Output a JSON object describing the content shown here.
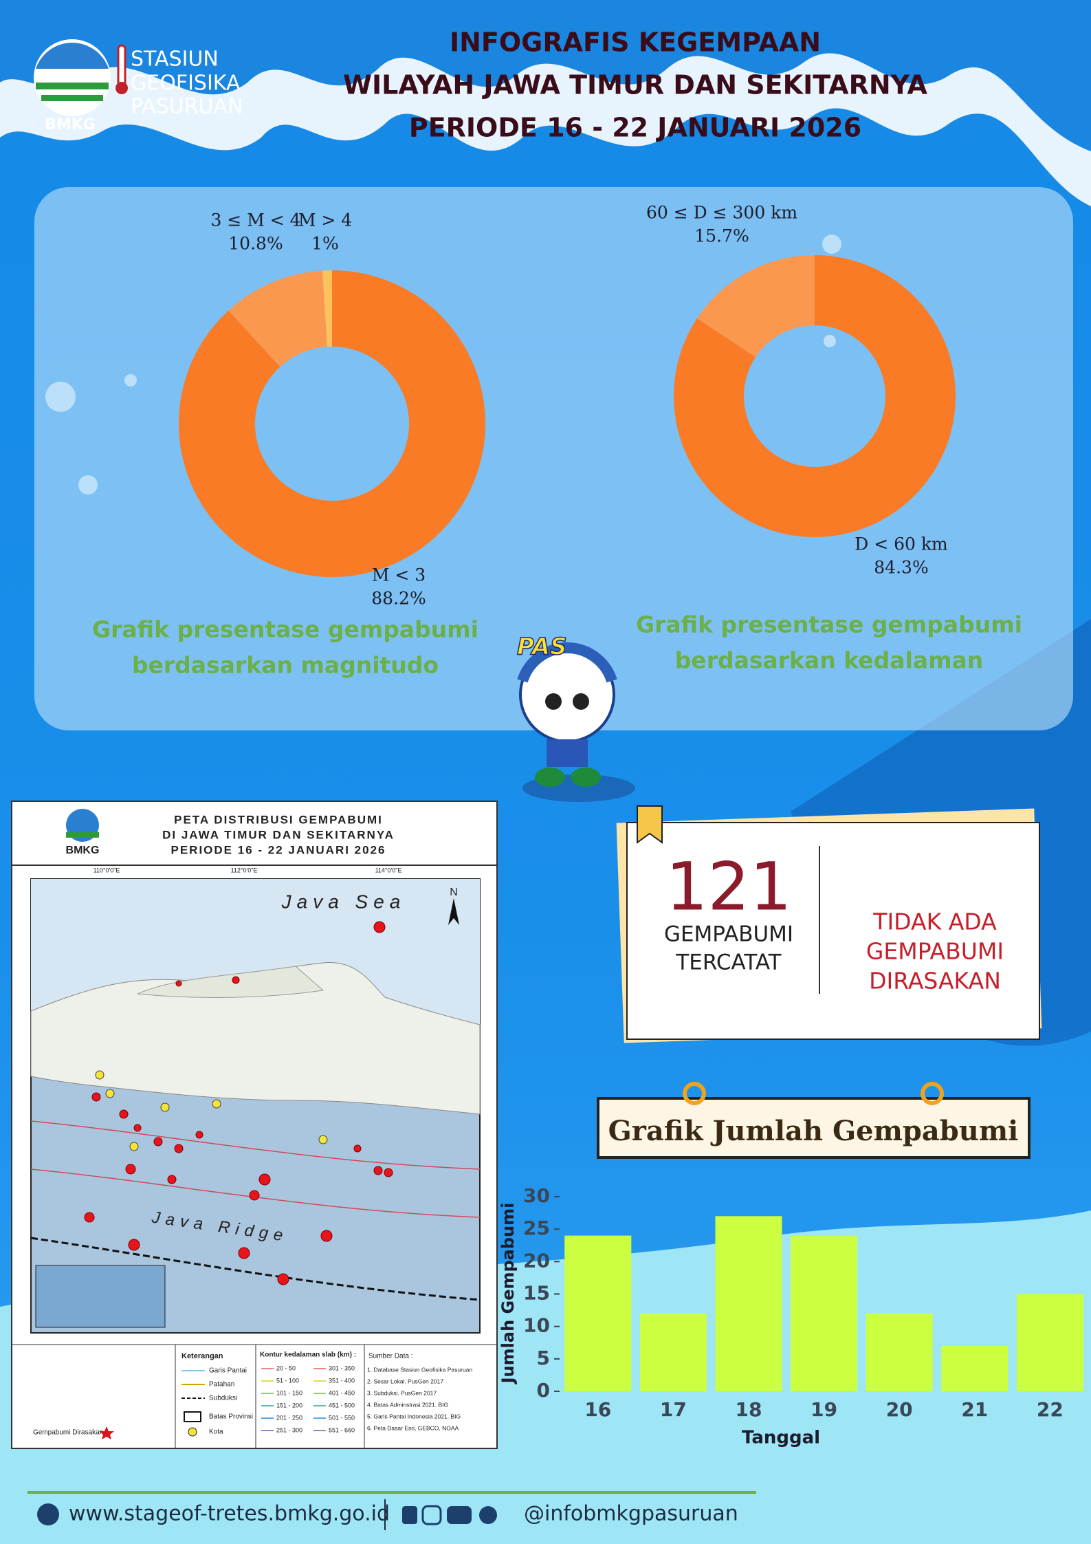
{
  "header": {
    "logo_lines": [
      "STASIUN",
      "GEOFISIKA",
      "PASURUAN"
    ],
    "logo_name": "BMKG",
    "title_lines": [
      "INFOGRAFIS KEGEMPAAN",
      "WILAYAH JAWA TIMUR DAN SEKITARNYA",
      "PERIODE 16 - 22 JANUARI 2026"
    ]
  },
  "chart_data": [
    {
      "type": "pie",
      "title": [
        "Grafik presentase gempabumi",
        "berdasarkan magnitudo"
      ],
      "categories": [
        "M < 3",
        "3 ≤ M < 4",
        "M > 4"
      ],
      "values": [
        88.2,
        10.8,
        1
      ],
      "value_labels": [
        "88.2%",
        "10.8%",
        "1%"
      ],
      "colors": [
        "#f97b25",
        "#fb9850",
        "#fcc35c"
      ]
    },
    {
      "type": "pie",
      "title": [
        "Grafik presentase gempabumi",
        "berdasarkan kedalaman"
      ],
      "categories": [
        "D < 60 km",
        "60 ≤ D ≤ 300 km"
      ],
      "values": [
        84.3,
        15.7
      ],
      "value_labels": [
        "84.3%",
        "15.7%"
      ],
      "colors": [
        "#f97b25",
        "#fb9850"
      ]
    },
    {
      "type": "bar",
      "title": "Grafik Jumlah Gempabumi",
      "x_label": "Tanggal",
      "y_label": "Jumlah Gempabumi",
      "categories": [
        "16",
        "17",
        "18",
        "19",
        "20",
        "21",
        "22"
      ],
      "values": [
        24,
        12,
        27,
        24,
        12,
        7,
        15
      ],
      "color": "#ccff3f",
      "ylim": [
        0,
        30
      ],
      "yticks": [
        0,
        5,
        10,
        15,
        20,
        25,
        30
      ]
    }
  ],
  "mascot": {
    "label": "PAS"
  },
  "summary": {
    "count": 121,
    "count_lines": [
      "GEMPABUMI",
      "TERCATAT"
    ],
    "felt_lines": [
      "TIDAK ADA",
      "GEMPABUMI",
      "DIRASAKAN"
    ]
  },
  "map": {
    "logo_name": "BMKG",
    "title_lines": [
      "PETA DISTRIBUSI GEMPABUMI",
      "DI JAWA TIMUR DAN SEKITARNYA",
      "PERIODE 16 - 22 JANUARI 2026"
    ],
    "longitudes": [
      "110°0'0\"E",
      "112°0'0\"E",
      "114°0'0\"E"
    ],
    "place_labels": [
      "Java Sea",
      "Java Ridge"
    ],
    "north": "N",
    "legend_title": "Keterangan",
    "legend_items": [
      "Garis Pantai",
      "Patahan",
      "Subduksi",
      "Batas Provinsi",
      "Kota"
    ],
    "contour_title": "Kontur kedalaman slab (km) :",
    "contours": [
      "20 - 50",
      "51 - 100",
      "101 - 150",
      "151 - 200",
      "201 - 250",
      "251 - 300",
      "301 - 350",
      "351 - 400",
      "401 - 450",
      "451 - 500",
      "501 - 550",
      "551 - 660"
    ],
    "source_title": "Sumber Data :",
    "sources": [
      "1. Database Stasiun Geofisika Pasuruan",
      "2. Sesar Lokal. PusGen 2017",
      "3. Subduksi. PusGen 2017",
      "4. Batas Adminstrasi 2021. BIG",
      "5. Garis Pantai Indonesia 2021. BIG",
      "6. Peta Dasar Esri, GEBCO, NOAA"
    ],
    "felt_legend": "Gempabumi Dirasakan"
  },
  "footer": {
    "website": "www.stageof-tretes.bmkg.go.id",
    "social": "@infobmkgpasuruan"
  }
}
